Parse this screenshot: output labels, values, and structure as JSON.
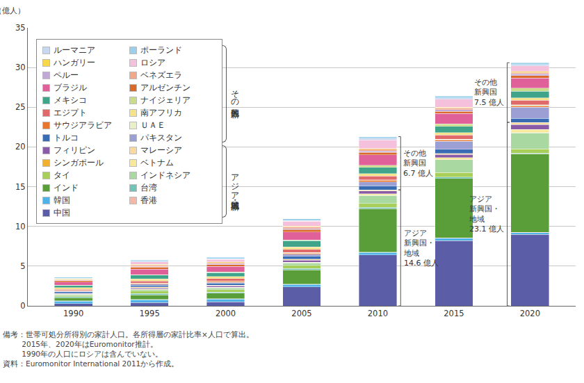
{
  "chart_data": {
    "type": "bar",
    "stacked": true,
    "grid": true,
    "y_label": "（億人）",
    "categories": [
      "1990",
      "1995",
      "2000",
      "2005",
      "2010",
      "2015",
      "2020"
    ],
    "ylim": [
      0,
      35
    ],
    "yticks": [
      0,
      5,
      10,
      15,
      20,
      25,
      30,
      35
    ],
    "legend_groups": [
      "その他新興国",
      "アジア新興国・地域"
    ],
    "series": [
      {
        "name": "中国",
        "group": "アジア新興国・地域",
        "color": "#5b5ea6",
        "values": [
          0.3,
          0.4,
          0.5,
          2.4,
          6.4,
          8.2,
          9.0
        ]
      },
      {
        "name": "韓国",
        "group": "アジア新興国・地域",
        "color": "#4fb3e8",
        "values": [
          0.3,
          0.35,
          0.35,
          0.3,
          0.3,
          0.3,
          0.2
        ]
      },
      {
        "name": "香港",
        "group": "アジア新興国・地域",
        "color": "#f4b8a8",
        "values": [
          0.04,
          0.05,
          0.05,
          0.05,
          0.05,
          0.05,
          0.05
        ]
      },
      {
        "name": "インド",
        "group": "アジア新興国・地域",
        "color": "#5a9e3a",
        "values": [
          0.4,
          0.6,
          0.7,
          1.8,
          5.5,
          7.5,
          9.9
        ]
      },
      {
        "name": "台湾",
        "group": "アジア新興国・地域",
        "color": "#72c4b6",
        "values": [
          0.12,
          0.15,
          0.15,
          0.15,
          0.15,
          0.15,
          0.1
        ]
      },
      {
        "name": "タイ",
        "group": "アジア新興国・地域",
        "color": "#a8cf5a",
        "values": [
          0.15,
          0.3,
          0.3,
          0.4,
          0.5,
          0.6,
          0.5
        ]
      },
      {
        "name": "インドネシア",
        "group": "アジア新興国・地域",
        "color": "#a9d8a0",
        "values": [
          0.1,
          0.2,
          0.2,
          0.3,
          1.0,
          1.6,
          2.0
        ]
      },
      {
        "name": "シンガポール",
        "group": "アジア新興国・地域",
        "color": "#f0b030",
        "values": [
          0.04,
          0.05,
          0.05,
          0.05,
          0.05,
          0.05,
          0.05
        ]
      },
      {
        "name": "ベトナム",
        "group": "アジア新興国・地域",
        "color": "#f8e89a",
        "values": [
          0.01,
          0.02,
          0.02,
          0.05,
          0.15,
          0.2,
          0.4
        ]
      },
      {
        "name": "フィリピン",
        "group": "アジア新興国・地域",
        "color": "#8a5ca8",
        "values": [
          0.1,
          0.15,
          0.2,
          0.25,
          0.35,
          0.4,
          0.6
        ]
      },
      {
        "name": "マレーシア",
        "group": "アジア新興国・地域",
        "color": "#f8d9a0",
        "values": [
          0.05,
          0.1,
          0.1,
          0.15,
          0.15,
          0.15,
          0.3
        ]
      },
      {
        "name": "トルコ",
        "group": "その他新興国",
        "color": "#3a6cb4",
        "values": [
          0.15,
          0.25,
          0.25,
          0.4,
          0.5,
          0.5,
          0.5
        ]
      },
      {
        "name": "パキスタン",
        "group": "その他新興国",
        "color": "#9b9fd4",
        "values": [
          0.05,
          0.1,
          0.1,
          0.2,
          0.5,
          1.0,
          1.4
        ]
      },
      {
        "name": "サウジアラビア",
        "group": "その他新興国",
        "color": "#e8772e",
        "values": [
          0.1,
          0.12,
          0.15,
          0.15,
          0.2,
          0.2,
          0.2
        ]
      },
      {
        "name": "ＵＡＥ",
        "group": "その他新興国",
        "color": "#e8f0c8",
        "values": [
          0.02,
          0.03,
          0.03,
          0.05,
          0.05,
          0.1,
          0.1
        ]
      },
      {
        "name": "エジプト",
        "group": "その他新興国",
        "color": "#e06a6a",
        "values": [
          0.15,
          0.25,
          0.3,
          0.4,
          0.5,
          0.5,
          0.6
        ]
      },
      {
        "name": "南アフリカ",
        "group": "その他新興国",
        "color": "#f4e38a",
        "values": [
          0.2,
          0.25,
          0.25,
          0.3,
          0.3,
          0.3,
          0.3
        ]
      },
      {
        "name": "メキシコ",
        "group": "その他新興国",
        "color": "#3fa48a",
        "values": [
          0.3,
          0.5,
          0.5,
          0.8,
          0.8,
          0.8,
          0.8
        ]
      },
      {
        "name": "ナイジェリア",
        "group": "その他新興国",
        "color": "#c8dc8a",
        "values": [
          0.03,
          0.05,
          0.05,
          0.1,
          0.25,
          0.3,
          0.4
        ]
      },
      {
        "name": "ブラジル",
        "group": "その他新興国",
        "color": "#e0609a",
        "values": [
          0.4,
          0.7,
          0.7,
          1.0,
          1.3,
          1.3,
          1.3
        ]
      },
      {
        "name": "アルゼンチン",
        "group": "その他新興国",
        "color": "#d96a2a",
        "values": [
          0.15,
          0.25,
          0.25,
          0.3,
          0.3,
          0.3,
          0.3
        ]
      },
      {
        "name": "ペルー",
        "group": "その他新興国",
        "color": "#c0a8d8",
        "values": [
          0.05,
          0.1,
          0.1,
          0.15,
          0.2,
          0.2,
          0.2
        ]
      },
      {
        "name": "ベネズエラ",
        "group": "その他新興国",
        "color": "#f0a888",
        "values": [
          0.1,
          0.15,
          0.15,
          0.2,
          0.2,
          0.2,
          0.2
        ]
      },
      {
        "name": "ハンガリー",
        "group": "その他新興国",
        "color": "#f8d84a",
        "values": [
          0.08,
          0.1,
          0.1,
          0.1,
          0.1,
          0.1,
          0.1
        ]
      },
      {
        "name": "ロシア",
        "group": "その他新興国",
        "color": "#f4c0dc",
        "values": [
          null,
          0.3,
          0.3,
          0.6,
          1.1,
          1.0,
          0.7
        ]
      },
      {
        "name": "ルーマニア",
        "group": "その他新興国",
        "color": "#c8d8f0",
        "values": [
          0.08,
          0.1,
          0.1,
          0.1,
          0.2,
          0.2,
          0.2
        ]
      },
      {
        "name": "ポーランド",
        "group": "その他新興国",
        "color": "#9ad0ec",
        "values": [
          0.12,
          0.15,
          0.15,
          0.2,
          0.2,
          0.2,
          0.2
        ]
      }
    ],
    "annotations": [
      {
        "x": "2010",
        "group": "アジア新興国・地域",
        "text": "アジア\n新興国・\n地域\n14.6 億人"
      },
      {
        "x": "2010",
        "group": "その他新興国",
        "text": "その他\n新興国\n6.7 億人"
      },
      {
        "x": "2020",
        "group": "アジア新興国・地域",
        "text": "アジア\n新興国・\n地域\n23.1 億人"
      },
      {
        "x": "2020",
        "group": "その他新興国",
        "text": "その他\n新興国\n7.5 億人"
      }
    ],
    "notes": [
      "備考：世帯可処分所得別の家計人口。各所得層の家計比率×人口で算出。",
      "2015年、2020年はEuromonitor推計。",
      "1990年の人口にロシアは含んでいない。",
      "資料：Euromonitor International 2011から作成。"
    ]
  }
}
